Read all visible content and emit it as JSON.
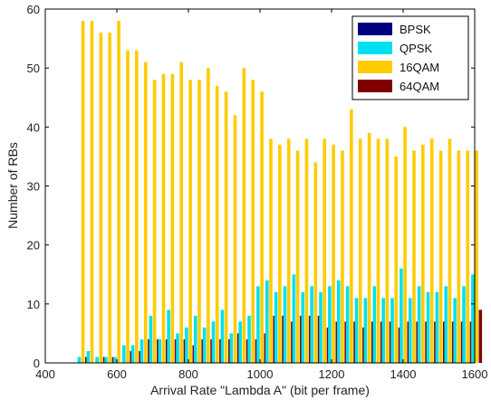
{
  "chart_data": {
    "type": "bar",
    "title": "",
    "xlabel": "Arrival Rate \"Lambda A\" (bit per frame)",
    "ylabel": "Number of RBs",
    "xlim": [
      400,
      1600
    ],
    "ylim": [
      0,
      60
    ],
    "xticks": [
      400,
      600,
      800,
      1000,
      1200,
      1400,
      1600
    ],
    "yticks": [
      0,
      10,
      20,
      30,
      40,
      50,
      60
    ],
    "grid": false,
    "legend_position": "top-right",
    "x": [
      500,
      525,
      550,
      575,
      600,
      625,
      650,
      675,
      700,
      725,
      750,
      775,
      800,
      825,
      850,
      875,
      900,
      925,
      950,
      975,
      1000,
      1025,
      1050,
      1075,
      1100,
      1125,
      1150,
      1175,
      1200,
      1225,
      1250,
      1275,
      1300,
      1325,
      1350,
      1375,
      1400,
      1425,
      1450,
      1475,
      1500,
      1525,
      1550,
      1575,
      1600
    ],
    "series": [
      {
        "name": "BPSK",
        "color": "#000080",
        "values": [
          0,
          0,
          0,
          0,
          0,
          0,
          0,
          0,
          0,
          0,
          0,
          0,
          0,
          0,
          0,
          0,
          0,
          0,
          0,
          0,
          0,
          0,
          0,
          0,
          0,
          0,
          0,
          0,
          0,
          0,
          0,
          0,
          0,
          0,
          0,
          0,
          0,
          0,
          0,
          0,
          0,
          0,
          0,
          0,
          0
        ]
      },
      {
        "name": "QPSK",
        "color": "#00e0f0",
        "values": [
          1,
          2,
          1,
          1,
          1,
          3,
          3,
          4,
          8,
          4,
          9,
          5,
          6,
          8,
          6,
          7,
          9,
          5,
          7,
          8,
          13,
          14,
          12,
          13,
          15,
          12,
          13,
          12,
          13,
          14,
          13,
          11,
          11,
          13,
          11,
          11,
          16,
          11,
          13,
          12,
          12,
          13,
          11,
          13,
          15
        ]
      },
      {
        "name": "16QAM",
        "color": "#ffcc00",
        "values": [
          58,
          58,
          56,
          56,
          58,
          53,
          53,
          51,
          48,
          49,
          49,
          51,
          48,
          48,
          50,
          47,
          46,
          42,
          50,
          48,
          46,
          38,
          37,
          38,
          36,
          38,
          34,
          38,
          37,
          36,
          43,
          38,
          39,
          38,
          38,
          35,
          40,
          36,
          37,
          38,
          36,
          38,
          36,
          36,
          36
        ]
      },
      {
        "name": "64QAM",
        "color": "#800000",
        "values": [
          1,
          0,
          1,
          1,
          0,
          2,
          2,
          4,
          4,
          4,
          4,
          4,
          3,
          4,
          4,
          4,
          4,
          5,
          4,
          4,
          5,
          8,
          8,
          7,
          8,
          8,
          8,
          6,
          7,
          7,
          7,
          6,
          7,
          7,
          7,
          6,
          7,
          7,
          7,
          7,
          7,
          7,
          7,
          7,
          9
        ]
      }
    ]
  }
}
